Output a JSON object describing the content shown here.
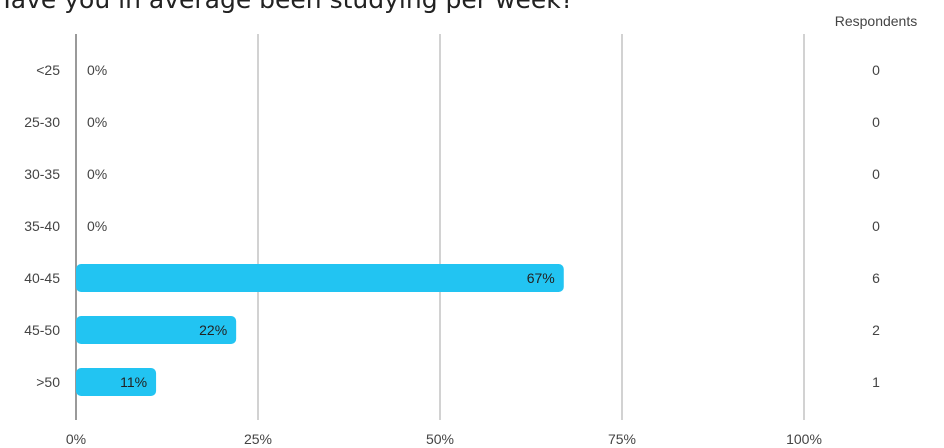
{
  "chart_data": {
    "type": "bar",
    "orientation": "horizontal",
    "title": "Have you in average been studying per week?",
    "categories": [
      "<25",
      "25-30",
      "30-35",
      "35-40",
      "40-45",
      "45-50",
      ">50"
    ],
    "values": [
      0,
      0,
      0,
      0,
      67,
      22,
      11
    ],
    "value_labels": [
      "0%",
      "0%",
      "0%",
      "0%",
      "67%",
      "22%",
      "11%"
    ],
    "respondents_header": "Respondents",
    "respondents": [
      "0",
      "0",
      "0",
      "0",
      "6",
      "2",
      "1"
    ],
    "xlim": [
      0,
      100
    ],
    "x_ticks": [
      "0%",
      "25%",
      "50%",
      "75%",
      "100%"
    ],
    "x_tick_values": [
      0,
      25,
      50,
      75,
      100
    ],
    "grid": true,
    "bar_color": "#22c4f2"
  }
}
